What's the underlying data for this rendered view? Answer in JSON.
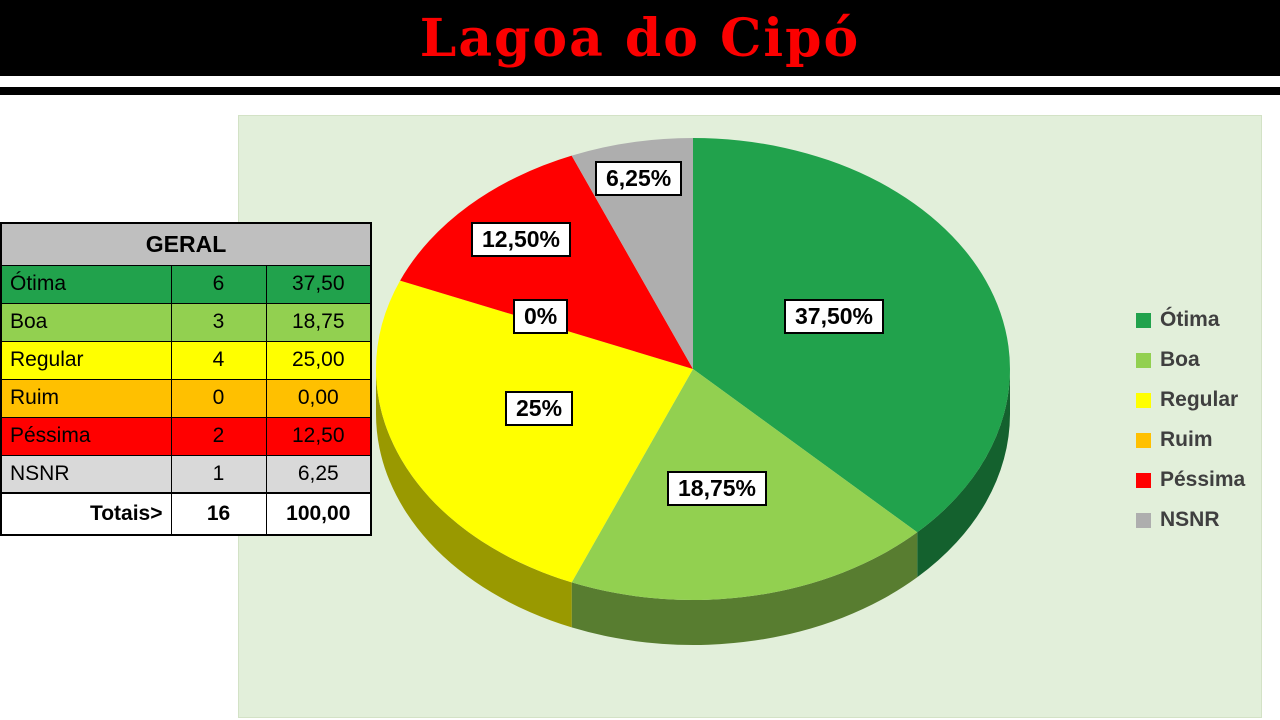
{
  "title": "Lagoa do Cipó",
  "table": {
    "header": "GERAL",
    "rows": [
      {
        "label": "Ótima",
        "count": "6",
        "pct": "37,50",
        "color": "#21a24c"
      },
      {
        "label": "Boa",
        "count": "3",
        "pct": "18,75",
        "color": "#92d050"
      },
      {
        "label": "Regular",
        "count": "4",
        "pct": "25,00",
        "color": "#ffff00"
      },
      {
        "label": "Ruim",
        "count": "0",
        "pct": "0,00",
        "color": "#ffc000"
      },
      {
        "label": "Péssima",
        "count": "2",
        "pct": "12,50",
        "color": "#ff0000"
      },
      {
        "label": "NSNR",
        "count": "1",
        "pct": "6,25",
        "color": "#d9d9d9"
      }
    ],
    "totals_label": "Totais>",
    "totals_count": "16",
    "totals_pct": "100,00"
  },
  "chart_data": {
    "type": "pie",
    "title": "Lagoa do Cipó",
    "legend_position": "right",
    "style": "3d-pie",
    "categories": [
      "Ótima",
      "Boa",
      "Regular",
      "Ruim",
      "Péssima",
      "NSNR"
    ],
    "values": [
      37.5,
      18.75,
      25,
      0,
      12.5,
      6.25
    ],
    "counts": [
      6,
      3,
      4,
      0,
      2,
      1
    ],
    "total": 16,
    "colors": [
      "#21a24c",
      "#92d050",
      "#ffff00",
      "#ffc000",
      "#ff0000",
      "#aeaeae"
    ],
    "slice_labels": [
      "37,50%",
      "18,75%",
      "25%",
      "0%",
      "12,50%",
      "6,25%"
    ]
  }
}
